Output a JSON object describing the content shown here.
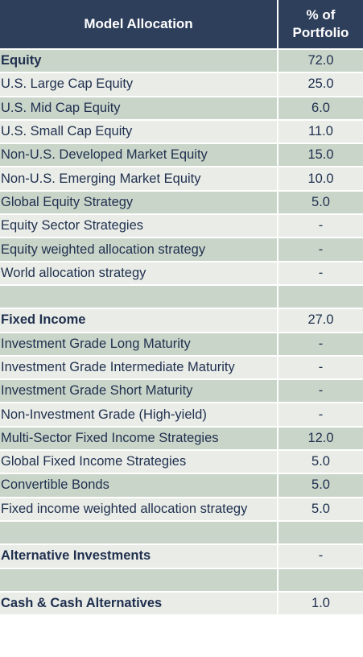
{
  "header": {
    "label": "Model Allocation",
    "pct_line1": "% of",
    "pct_line2": "Portfolio"
  },
  "rows": [
    {
      "label": "Equity",
      "value": "72.0",
      "bold": true
    },
    {
      "label": "U.S. Large Cap Equity",
      "value": "25.0"
    },
    {
      "label": "U.S. Mid Cap Equity",
      "value": "6.0"
    },
    {
      "label": "U.S. Small Cap Equity",
      "value": "11.0"
    },
    {
      "label": "Non-U.S. Developed Market Equity",
      "value": "15.0"
    },
    {
      "label": "Non-U.S. Emerging Market Equity",
      "value": "10.0"
    },
    {
      "label": "Global Equity Strategy",
      "value": "5.0"
    },
    {
      "label": "Equity Sector Strategies",
      "value": "-"
    },
    {
      "label": "Equity weighted allocation strategy",
      "value": "-"
    },
    {
      "label": "World allocation strategy",
      "value": "-"
    },
    {
      "label": "",
      "value": ""
    },
    {
      "label": "Fixed Income",
      "value": "27.0",
      "bold": true
    },
    {
      "label": "Investment Grade Long Maturity",
      "value": "-"
    },
    {
      "label": "Investment Grade Intermediate Maturity",
      "value": "-"
    },
    {
      "label": "Investment Grade Short Maturity",
      "value": "-"
    },
    {
      "label": "Non-Investment Grade (High-yield)",
      "value": "-"
    },
    {
      "label": "Multi-Sector Fixed Income Strategies",
      "value": "12.0"
    },
    {
      "label": "Global Fixed Income Strategies",
      "value": "5.0"
    },
    {
      "label": "Convertible Bonds",
      "value": "5.0"
    },
    {
      "label": "Fixed income weighted allocation strategy",
      "value": "5.0"
    },
    {
      "label": "",
      "value": ""
    },
    {
      "label": "Alternative Investments",
      "value": "-",
      "bold": true
    },
    {
      "label": "",
      "value": ""
    },
    {
      "label": "Cash & Cash Alternatives",
      "value": "1.0",
      "bold": true
    }
  ]
}
